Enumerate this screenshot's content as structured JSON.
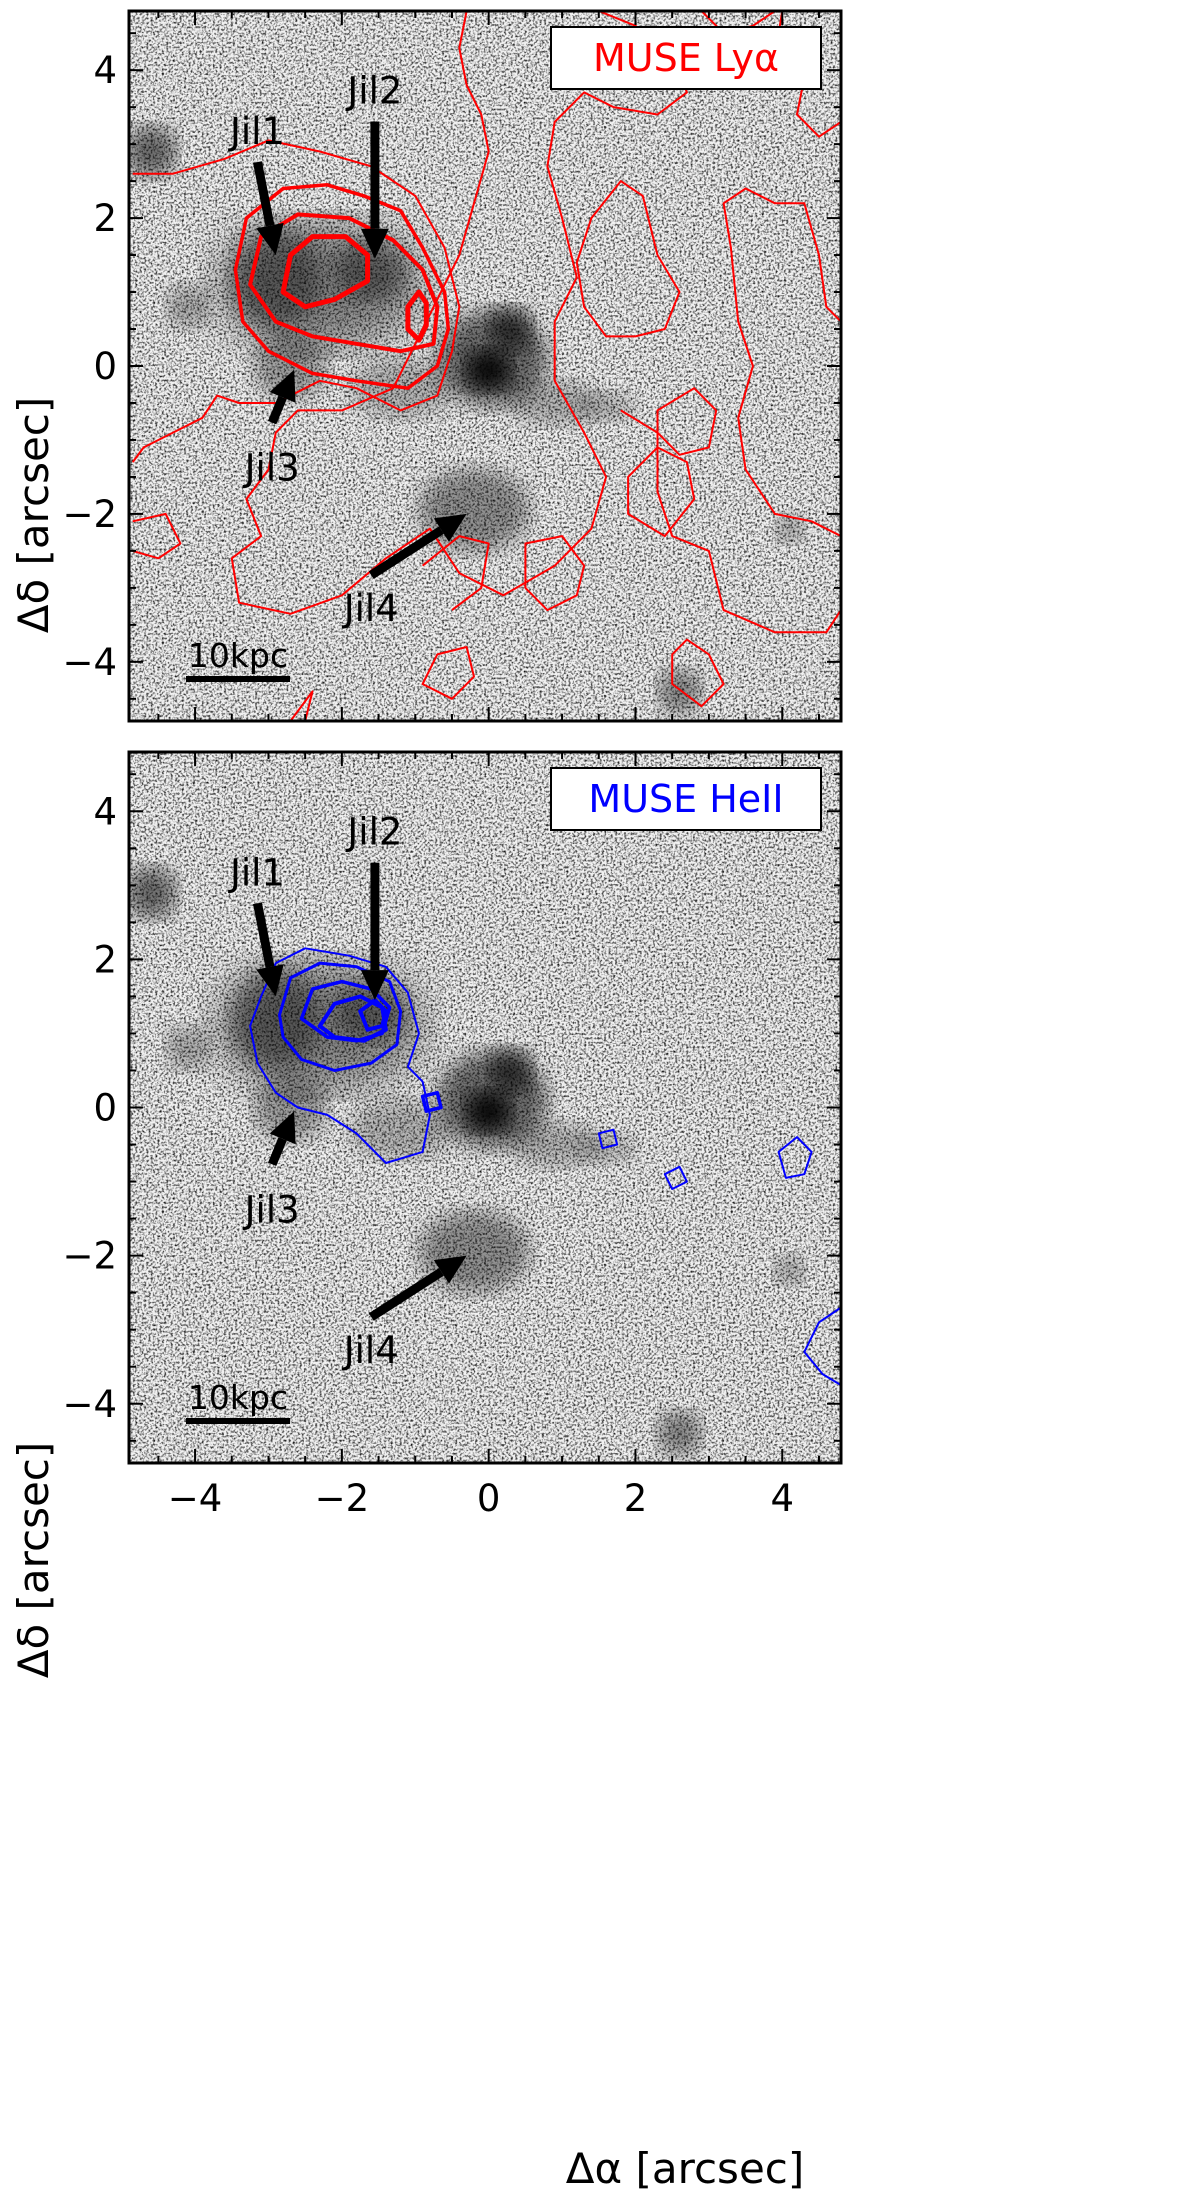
{
  "figure": {
    "xlabel": "Δα [arcsec]",
    "ylabel": "Δδ [arcsec]"
  },
  "chart_data": [
    {
      "type": "contour",
      "panel": "top",
      "legend_text": "MUSE Lyα",
      "contour_color": "#ff0000",
      "background": "grayscale image",
      "xlim": [
        -4.9,
        4.8
      ],
      "ylim": [
        -4.8,
        4.8
      ],
      "xticks": [
        -4,
        -2,
        0,
        2,
        4
      ],
      "yticks": [
        -4,
        -2,
        0,
        2,
        4
      ],
      "show_xtick_labels": false,
      "scale_bar": "10kpc",
      "annotations": [
        {
          "label": "Jil1",
          "text_at": [
            -3.15,
            3.0
          ],
          "arrow_tip": [
            -2.9,
            1.5
          ]
        },
        {
          "label": "Jil2",
          "text_at": [
            -1.55,
            3.55
          ],
          "arrow_tip": [
            -1.55,
            1.45
          ]
        },
        {
          "label": "Jil3",
          "text_at": [
            -2.95,
            -1.55
          ],
          "arrow_tip": [
            -2.65,
            -0.05
          ]
        },
        {
          "label": "Jil4",
          "text_at": [
            -1.6,
            -3.45
          ],
          "arrow_tip": [
            -0.3,
            -2.0
          ]
        }
      ]
    },
    {
      "type": "contour",
      "panel": "bottom",
      "legend_text": "MUSE HeII",
      "contour_color": "#0000ff",
      "background": "grayscale image",
      "xlim": [
        -4.9,
        4.8
      ],
      "ylim": [
        -4.8,
        4.8
      ],
      "xticks": [
        -4,
        -2,
        0,
        2,
        4
      ],
      "yticks": [
        -4,
        -2,
        0,
        2,
        4
      ],
      "show_xtick_labels": true,
      "scale_bar": "10kpc",
      "annotations": [
        {
          "label": "Jil1",
          "text_at": [
            -3.15,
            3.0
          ],
          "arrow_tip": [
            -2.9,
            1.5
          ]
        },
        {
          "label": "Jil2",
          "text_at": [
            -1.55,
            3.55
          ],
          "arrow_tip": [
            -1.55,
            1.45
          ]
        },
        {
          "label": "Jil3",
          "text_at": [
            -2.95,
            -1.55
          ],
          "arrow_tip": [
            -2.65,
            -0.05
          ]
        },
        {
          "label": "Jil4",
          "text_at": [
            -1.6,
            -3.45
          ],
          "arrow_tip": [
            -0.3,
            -2.0
          ]
        }
      ]
    }
  ]
}
